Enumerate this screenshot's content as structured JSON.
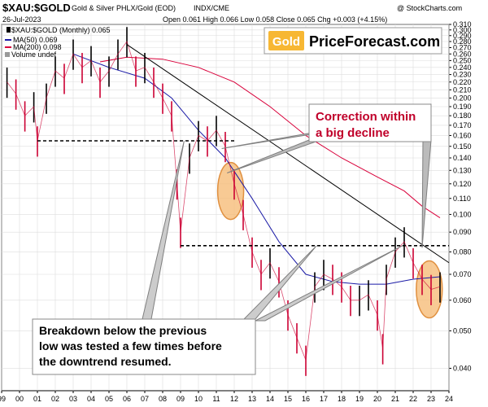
{
  "header": {
    "symbol": "$XAU:$GOLD",
    "description": "Gold & Silver PHLX/Gold (EOD)",
    "exchange": "INDX/CME",
    "watermark": "@ StockCharts.com",
    "date": "26-Jul-2023",
    "ohlc": "Open 0.061  High 0.066  Low 0.058  Close 0.065  Chg +0.003 (+4.15%)",
    "legend_main": "$XAU:$GOLD (Monthly) 0.065",
    "legend_ma50": "MA(50) 0.069",
    "legend_ma200": "MA(200) 0.098",
    "legend_volume": "Volume undef"
  },
  "logo": {
    "gold": "Gold",
    "site": "PriceForecast.com"
  },
  "annotations": {
    "correction_line1": "Correction within",
    "correction_line2": "a big decline",
    "breakdown_line1": "Breakdown below the previous",
    "breakdown_line2": "low was tested a few times before",
    "breakdown_line3": "the downtrend resumed."
  },
  "colors": {
    "price_up": "#000000",
    "price_down": "#cc0033",
    "ma50": "#1a1aa6",
    "ma200": "#d9003a",
    "trendline": "#000000",
    "ellipse": "#f5b870",
    "correction_text": "#c0002a",
    "logo_gold_bg": "#f7b733",
    "grid": "#dddddd"
  },
  "chart_data": {
    "type": "line",
    "scale": "log",
    "ylim": [
      0.035,
      0.31
    ],
    "xlim": [
      1999.0,
      2024.0
    ],
    "x_ticks": [
      "99",
      "00",
      "01",
      "02",
      "03",
      "04",
      "05",
      "06",
      "07",
      "08",
      "09",
      "10",
      "11",
      "12",
      "13",
      "14",
      "15",
      "16",
      "17",
      "18",
      "19",
      "20",
      "21",
      "22",
      "23",
      "24"
    ],
    "y_ticks": [
      "0.310",
      "0.300",
      "0.290",
      "0.280",
      "0.270",
      "0.260",
      "0.250",
      "0.240",
      "0.230",
      "0.220",
      "0.210",
      "0.200",
      "0.190",
      "0.180",
      "0.170",
      "0.160",
      "0.150",
      "0.140",
      "0.130",
      "0.120",
      "0.110",
      "0.100",
      "0.090",
      "0.080",
      "0.070",
      "0.060",
      "0.050",
      "0.040"
    ],
    "series": [
      {
        "name": "$XAU:$GOLD",
        "x": [
          1999.3,
          1999.8,
          2000.3,
          2000.8,
          2001.0,
          2001.5,
          2002.0,
          2002.5,
          2003.0,
          2003.5,
          2004.0,
          2004.5,
          2005.0,
          2005.5,
          2006.0,
          2006.5,
          2007.0,
          2007.5,
          2008.0,
          2008.5,
          2008.8,
          2009.0,
          2009.5,
          2010.0,
          2010.5,
          2011.0,
          2011.5,
          2012.0,
          2012.5,
          2013.0,
          2013.5,
          2014.0,
          2014.5,
          2015.0,
          2015.5,
          2016.0,
          2016.5,
          2017.0,
          2017.5,
          2018.0,
          2018.5,
          2019.0,
          2019.5,
          2020.0,
          2020.3,
          2020.5,
          2021.0,
          2021.5,
          2022.0,
          2022.5,
          2023.0,
          2023.5
        ],
        "values": [
          0.22,
          0.205,
          0.18,
          0.19,
          0.155,
          0.2,
          0.235,
          0.225,
          0.26,
          0.24,
          0.25,
          0.22,
          0.235,
          0.26,
          0.28,
          0.235,
          0.24,
          0.22,
          0.2,
          0.18,
          0.12,
          0.09,
          0.14,
          0.16,
          0.155,
          0.165,
          0.15,
          0.12,
          0.1,
          0.08,
          0.07,
          0.075,
          0.067,
          0.055,
          0.048,
          0.042,
          0.065,
          0.07,
          0.068,
          0.065,
          0.06,
          0.06,
          0.062,
          0.055,
          0.045,
          0.068,
          0.08,
          0.085,
          0.075,
          0.068,
          0.064,
          0.065
        ]
      },
      {
        "name": "MA(50)",
        "x": [
          2003.0,
          2005.0,
          2007.0,
          2008.5,
          2010.0,
          2011.5,
          2013.0,
          2014.5,
          2016.0,
          2017.5,
          2019.0,
          2020.5,
          2022.0,
          2023.5
        ],
        "values": [
          0.26,
          0.24,
          0.225,
          0.2,
          0.165,
          0.14,
          0.11,
          0.085,
          0.07,
          0.067,
          0.066,
          0.066,
          0.068,
          0.069
        ]
      },
      {
        "name": "MA(200)",
        "x": [
          2004.5,
          2006.0,
          2008.0,
          2010.0,
          2012.0,
          2014.0,
          2016.0,
          2018.0,
          2020.0,
          2021.5,
          2022.5,
          2023.5
        ],
        "values": [
          0.248,
          0.255,
          0.252,
          0.24,
          0.22,
          0.19,
          0.16,
          0.14,
          0.125,
          0.115,
          0.105,
          0.098
        ]
      }
    ],
    "lines": [
      {
        "kind": "trendline",
        "x": [
          2006.0,
          2024.0
        ],
        "values": [
          0.275,
          0.075
        ]
      },
      {
        "kind": "support-dashed",
        "x": [
          2001.0,
          2012.0
        ],
        "values": [
          0.155,
          0.155
        ]
      },
      {
        "kind": "support-dashed",
        "x": [
          2009.0,
          2024.0
        ],
        "values": [
          0.083,
          0.083
        ]
      }
    ],
    "highlights": [
      {
        "x": 2011.8,
        "value": 0.115
      },
      {
        "x": 2022.9,
        "value": 0.064
      }
    ]
  }
}
